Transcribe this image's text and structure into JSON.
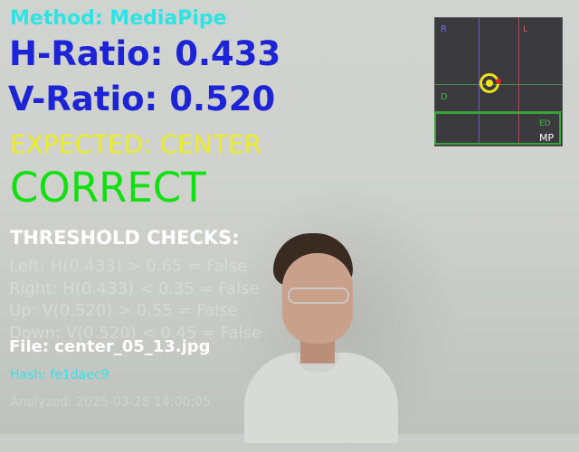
{
  "overlay": {
    "method": "Method: MediaPipe",
    "h_ratio": "H-Ratio: 0.433",
    "v_ratio": "V-Ratio: 0.520",
    "expected": "EXPECTED: CENTER",
    "result": "CORRECT",
    "threshold_title": "THRESHOLD CHECKS:",
    "checks": [
      "Left: H(0.433) > 0.65 = False",
      "Right: H(0.433) < 0.35 = False",
      "Up: V(0.520) > 0.55 = False",
      "Down: V(0.520) < 0.45 = False"
    ],
    "file": "File: center_05_13.jpg",
    "hash": "Hash: fe1daec9",
    "analyzed": "Analyzed: 2025-03-28 14:00:05"
  },
  "minimap": {
    "label_r": "R",
    "label_l": "L",
    "label_d": "D",
    "label_ed": "ED",
    "label_mp": "MP"
  },
  "colors": {
    "method": "#13e6e8",
    "ratio": "#1c24d6",
    "expected": "#eded20",
    "correct": "#10e010",
    "hash": "#33e1ea",
    "gaze_ring": "#f2e21a",
    "gaze_dot": "#e02020"
  }
}
